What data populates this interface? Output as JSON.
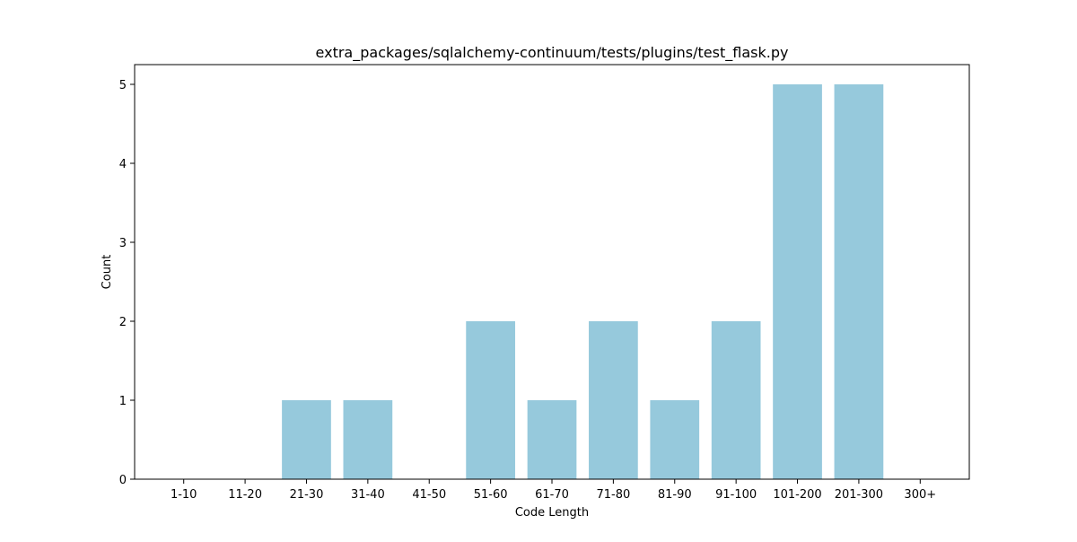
{
  "chart_data": {
    "type": "bar",
    "title": "extra_packages/sqlalchemy-continuum/tests/plugins/test_flask.py",
    "xlabel": "Code Length",
    "ylabel": "Count",
    "categories": [
      "1-10",
      "11-20",
      "21-30",
      "31-40",
      "41-50",
      "51-60",
      "61-70",
      "71-80",
      "81-90",
      "91-100",
      "101-200",
      "201-300",
      "300+"
    ],
    "values": [
      0,
      0,
      1,
      1,
      0,
      2,
      1,
      2,
      1,
      2,
      5,
      5,
      0
    ],
    "ylim": [
      0,
      5.25
    ],
    "yticks": [
      0,
      1,
      2,
      3,
      4,
      5
    ],
    "bar_color": "#96c9dc",
    "grid": false,
    "legend": "none"
  }
}
